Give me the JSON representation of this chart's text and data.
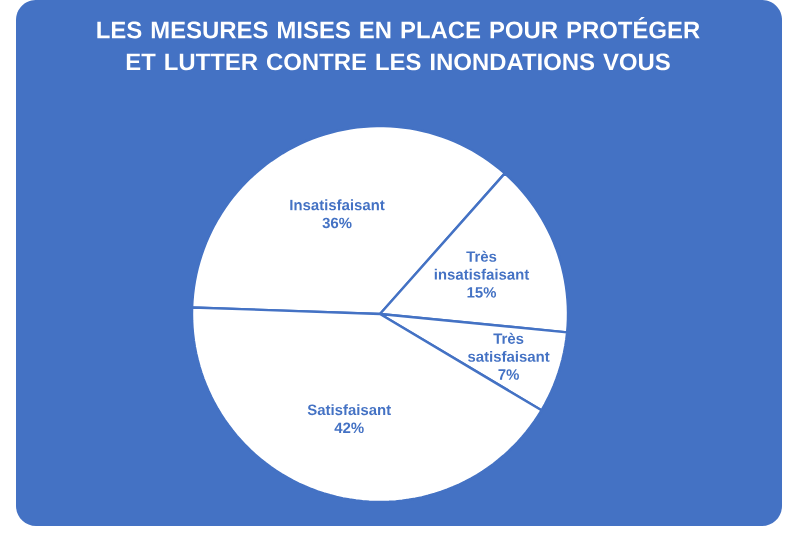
{
  "chart_data": {
    "type": "pie",
    "title": "LES MESURES MISES EN PLACE POUR PROTÉGER ET LUTTER CONTRE LES INONDATIONS VOUS",
    "categories": [
      "Insatisfaisant",
      "Très insatisfaisant",
      "Très satisfaisant",
      "Satisfaisant"
    ],
    "values": [
      36,
      15,
      7,
      42
    ],
    "value_labels": [
      "36%",
      "15%",
      "7%",
      "42%"
    ],
    "colors": [
      "#ffffff",
      "#ffffff",
      "#ffffff",
      "#ffffff"
    ]
  }
}
